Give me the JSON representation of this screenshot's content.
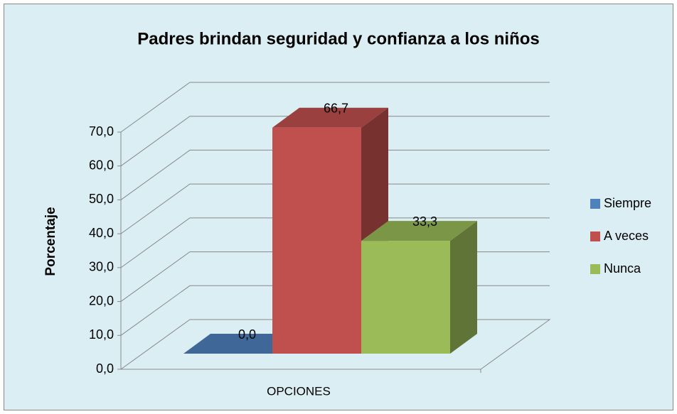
{
  "chart_data": {
    "type": "bar3d",
    "title": "Padres brindan seguridad y confianza a los niños",
    "y_label": "Porcentaje",
    "categories": [
      "OPCIONES"
    ],
    "series": [
      {
        "name": "Siempre",
        "color": "#4f81bd",
        "values": [
          0.0
        ],
        "value_labels": [
          "0,0"
        ]
      },
      {
        "name": "A veces",
        "color": "#c0504d",
        "values": [
          66.7
        ],
        "value_labels": [
          "66,7"
        ]
      },
      {
        "name": "Nunca",
        "color": "#9bbb59",
        "values": [
          33.3
        ],
        "value_labels": [
          "33,3"
        ]
      }
    ],
    "ylim": [
      0,
      70
    ],
    "yticks": [
      {
        "value": 0,
        "label": "0,0"
      },
      {
        "value": 10,
        "label": "10,0"
      },
      {
        "value": 20,
        "label": "20,0"
      },
      {
        "value": 30,
        "label": "30,0"
      },
      {
        "value": 40,
        "label": "40,0"
      },
      {
        "value": 50,
        "label": "50,0"
      },
      {
        "value": 60,
        "label": "60,0"
      },
      {
        "value": 70,
        "label": "70,0"
      }
    ],
    "grid": true,
    "legend": "right"
  }
}
